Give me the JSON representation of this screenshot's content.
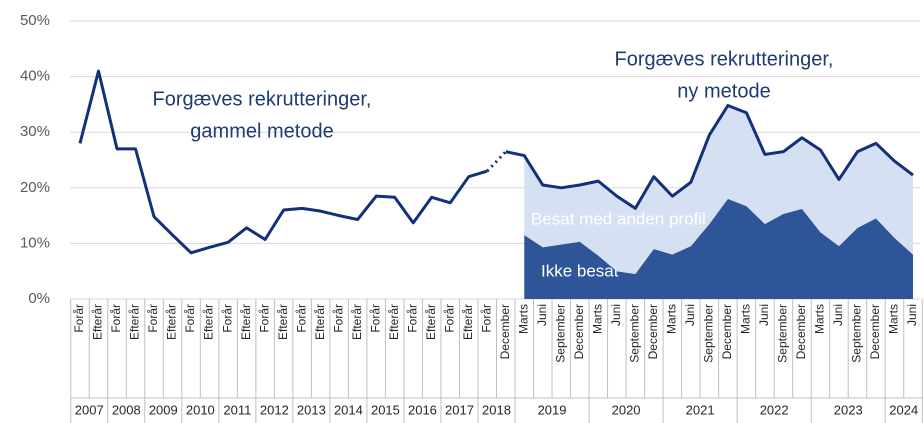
{
  "chart_data": {
    "type": "line",
    "categories": [
      [
        "2007",
        "Forår"
      ],
      [
        "2007",
        "Efterår"
      ],
      [
        "2008",
        "Forår"
      ],
      [
        "2008",
        "Efterår"
      ],
      [
        "2009",
        "Forår"
      ],
      [
        "2009",
        "Efterår"
      ],
      [
        "2010",
        "Forår"
      ],
      [
        "2010",
        "Efterår"
      ],
      [
        "2011",
        "Forår"
      ],
      [
        "2011",
        "Efterår"
      ],
      [
        "2012",
        "Forår"
      ],
      [
        "2012",
        "Efterår"
      ],
      [
        "2013",
        "Forår"
      ],
      [
        "2013",
        "Efterår"
      ],
      [
        "2014",
        "Forår"
      ],
      [
        "2014",
        "Efterår"
      ],
      [
        "2015",
        "Forår"
      ],
      [
        "2015",
        "Efterår"
      ],
      [
        "2016",
        "Forår"
      ],
      [
        "2016",
        "Efterår"
      ],
      [
        "2017",
        "Forår"
      ],
      [
        "2017",
        "Efterår"
      ],
      [
        "2018",
        "Forår"
      ],
      [
        "2018",
        "December"
      ],
      [
        "2019",
        "Marts"
      ],
      [
        "2019",
        "Juni"
      ],
      [
        "2019",
        "September"
      ],
      [
        "2019",
        "December"
      ],
      [
        "2020",
        "Marts"
      ],
      [
        "2020",
        "Juni"
      ],
      [
        "2020",
        "September"
      ],
      [
        "2020",
        "December"
      ],
      [
        "2021",
        "Marts"
      ],
      [
        "2021",
        "Juni"
      ],
      [
        "2021",
        "September"
      ],
      [
        "2021",
        "December"
      ],
      [
        "2022",
        "Marts"
      ],
      [
        "2022",
        "Juni"
      ],
      [
        "2022",
        "September"
      ],
      [
        "2022",
        "December"
      ],
      [
        "2023",
        "Marts"
      ],
      [
        "2023",
        "Juni"
      ],
      [
        "2023",
        "September"
      ],
      [
        "2023",
        "December"
      ],
      [
        "2024",
        "Marts"
      ],
      [
        "2024",
        "Juni"
      ]
    ],
    "series": [
      {
        "type": "line",
        "color": "#13307a",
        "values": [
          28,
          41,
          27,
          27,
          14.8,
          11.5,
          8.3,
          9.3,
          10.2,
          12.8,
          10.7,
          16,
          16.3,
          15.8,
          15,
          14.3,
          18.5,
          18.3,
          13.7,
          18.3,
          17.3,
          22,
          23,
          null,
          null,
          null,
          null,
          null,
          null,
          null,
          null,
          null,
          null,
          null,
          null,
          null,
          null,
          null,
          null,
          null,
          null,
          null,
          null,
          null,
          null,
          null
        ]
      },
      {
        "type": "line",
        "color": "#13307a",
        "values": [
          null,
          null,
          null,
          null,
          null,
          null,
          null,
          null,
          null,
          null,
          null,
          null,
          null,
          null,
          null,
          null,
          null,
          null,
          null,
          null,
          null,
          null,
          null,
          26.5,
          25.8,
          20.5,
          20,
          20.5,
          21.2,
          18.5,
          16.3,
          22,
          18.5,
          21,
          29.5,
          34.8,
          33.5,
          26,
          26.5,
          29,
          26.8,
          21.5,
          26.5,
          28,
          24.8,
          22.3
        ]
      },
      {
        "type": "area",
        "name": "Ikke besat",
        "color": "#2e5597",
        "values": [
          null,
          null,
          null,
          null,
          null,
          null,
          null,
          null,
          null,
          null,
          null,
          null,
          null,
          null,
          null,
          null,
          null,
          null,
          null,
          null,
          null,
          null,
          null,
          null,
          11.5,
          9.3,
          9.8,
          10.3,
          7.8,
          5,
          4.5,
          9,
          8,
          9.5,
          13.5,
          18,
          16.7,
          13.5,
          15.3,
          16.2,
          12,
          9.5,
          12.8,
          14.5,
          11,
          8
        ]
      },
      {
        "type": "area",
        "name": "Besat med anden profil",
        "color": "#d6e0f3",
        "values": [
          null,
          null,
          null,
          null,
          null,
          null,
          null,
          null,
          null,
          null,
          null,
          null,
          null,
          null,
          null,
          null,
          null,
          null,
          null,
          null,
          null,
          null,
          null,
          null,
          14.3,
          11.2,
          10.2,
          10.2,
          13.4,
          13.5,
          11.8,
          13,
          10.5,
          11.5,
          16,
          16.8,
          16.8,
          12.5,
          11.2,
          12.8,
          14.8,
          12,
          13.7,
          13.5,
          13.8,
          14.3
        ]
      }
    ],
    "annotations": [
      {
        "lines": [
          "Forgæves rekrutteringer,",
          "gammel metode"
        ]
      },
      {
        "lines": [
          "Forgæves rekrutteringer,",
          "ny metode"
        ]
      }
    ],
    "ylim": [
      0,
      50
    ],
    "yticks": [
      {
        "value": 0,
        "label": "0%"
      },
      {
        "value": 10,
        "label": "10%"
      },
      {
        "value": 20,
        "label": "20%"
      },
      {
        "value": 30,
        "label": "30%"
      },
      {
        "value": 40,
        "label": "40%"
      },
      {
        "value": 50,
        "label": "50%"
      }
    ],
    "grid": true
  }
}
